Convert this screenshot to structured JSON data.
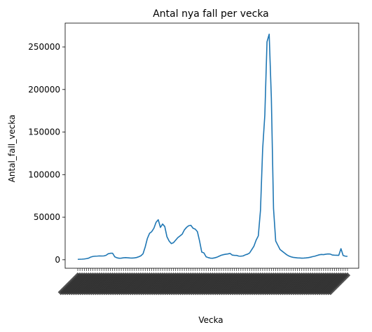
{
  "chart_data": {
    "type": "line",
    "title": "Antal nya fall per vecka",
    "xlabel": "Vecka",
    "ylabel": "Antal_fall_vecka",
    "ylim": [
      -10000,
      278000
    ],
    "yticks": [
      0,
      50000,
      100000,
      150000,
      200000,
      250000
    ],
    "ytick_labels": [
      "0",
      "50000",
      "100000",
      "150000",
      "200000",
      "250000"
    ],
    "grid": false,
    "legend": "none",
    "x_tick_labels_note": "dense rotated week labels, illegible",
    "series": [
      {
        "color": "#1f77b4",
        "values": [
          500,
          600,
          700,
          900,
          1300,
          1900,
          3200,
          3900,
          4200,
          4300,
          4500,
          4400,
          4500,
          5200,
          7000,
          7600,
          7700,
          3500,
          2300,
          1800,
          1900,
          2300,
          2500,
          2300,
          2100,
          2000,
          2200,
          2600,
          3500,
          4600,
          7000,
          15000,
          25000,
          31000,
          33000,
          37000,
          44000,
          47000,
          38000,
          42000,
          39000,
          27000,
          22000,
          19000,
          20000,
          23000,
          26000,
          28000,
          30000,
          35000,
          38000,
          40000,
          40500,
          37000,
          36000,
          33000,
          22000,
          9000,
          8000,
          3500,
          2500,
          1900,
          1800,
          2300,
          3000,
          4200,
          5300,
          6000,
          6500,
          6800,
          7500,
          5500,
          5200,
          5100,
          4300,
          4200,
          4500,
          5700,
          6500,
          8000,
          12000,
          16000,
          23000,
          28000,
          58000,
          130000,
          170000,
          256000,
          265000,
          190000,
          60000,
          22000,
          17000,
          12000,
          10000,
          8000,
          6000,
          4500,
          3500,
          2800,
          2500,
          2200,
          2100,
          1900,
          2000,
          2200,
          2500,
          3000,
          3700,
          4200,
          5000,
          5800,
          6200,
          6000,
          6500,
          6800,
          6700,
          5600,
          5400,
          5300,
          5200,
          13000,
          5000,
          4200,
          4000
        ]
      }
    ]
  }
}
